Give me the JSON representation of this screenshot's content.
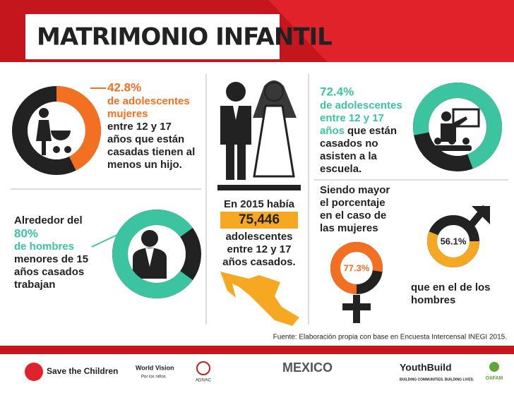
{
  "header": {
    "title": "MATRIMONIO INFANTIL"
  },
  "women_children": {
    "percent": {
      "value": 42.8,
      "label": "42.8%"
    },
    "highlight": [
      "de adolescentes",
      "mujeres"
    ],
    "text": [
      "entre 12 y 17",
      "años que están",
      "casadas tienen al",
      "menos un hijo."
    ]
  },
  "men_work": {
    "intro": "Alrededor del",
    "percent": {
      "value": 80,
      "label": "80%"
    },
    "highlight": [
      "de hombres"
    ],
    "text": [
      "menores de 15",
      "años casados",
      "trabajan"
    ]
  },
  "total": {
    "intro": "En 2015 había",
    "number": "75,446",
    "text": [
      "adolescentes",
      "entre 12 y 17",
      "años casados."
    ]
  },
  "school": {
    "percent": {
      "value": 72.4,
      "label": "72.4%"
    },
    "highlight": [
      "de adolescentes",
      "entre 12 y 17",
      "años"
    ],
    "text": [
      "que están",
      "casados no",
      "asisten a la",
      "escuela."
    ]
  },
  "comparison": {
    "intro": [
      "Siendo mayor",
      "el porcentaje",
      "en el caso de",
      "las mujeres"
    ],
    "women": {
      "value": 77.3,
      "label": "77.3%"
    },
    "men": {
      "value": 56.1,
      "label": "56.1%"
    },
    "outro": [
      "que en el de los",
      "hombres"
    ]
  },
  "source": "Fuente: Elaboración propia con base en Encuesta Intercensal INEGI 2015.",
  "logos": [
    "Save the Children",
    "World Vision",
    "Por los niños",
    "ADIVAC",
    "MEXICO",
    "YouthBuild",
    "BUILDING COMMUNITIES. BUILDING LIVES.",
    "OXFAM"
  ]
}
